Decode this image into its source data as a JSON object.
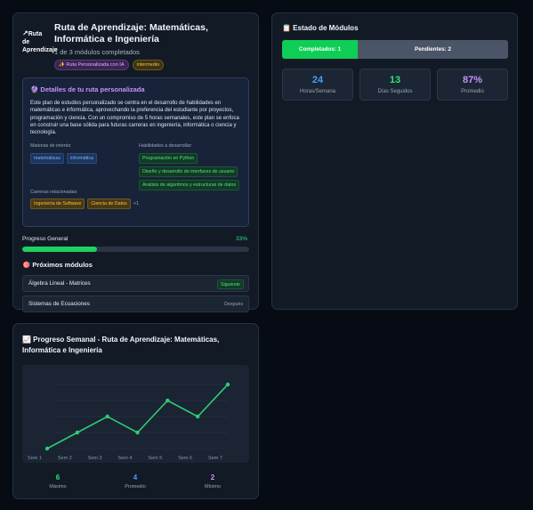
{
  "route": {
    "logo_alt": "Ruta de Aprendizaje",
    "logo_icon": "logo-icon",
    "title": "Ruta de Aprendizaje: Matemáticas, Informática e Ingeniería",
    "subtitle": "1 de 3 módulos completados",
    "tag_ai": "✨ Ruta Personalizada con IA",
    "tag_level": "intermedio",
    "details": {
      "title": "🔮 Detalles de tu ruta personalizada",
      "description": "Este plan de estudios personalizado se centra en el desarrollo de habilidades en matemáticas e informática, aprovechando la preferencia del estudiante por proyectos, programación y ciencia. Con un compromiso de 5 horas semanales, este plan se enfoca en construir una base sólida para futuras carreras en ingeniería, informática o ciencia y tecnología.",
      "interests_label": "Materias de interés:",
      "interests": [
        "matemáticas",
        "informática"
      ],
      "skills_label": "Habilidades a desarrollar:",
      "skills": [
        "Programación en Python",
        "Diseño y desarrollo de interfaces de usuario",
        "Análisis de algoritmos y estructuras de datos"
      ],
      "careers_label": "Carreras relacionadas:",
      "careers": [
        "Ingeniería de Software",
        "Ciencia de Datos"
      ],
      "careers_more": "+1"
    },
    "progress": {
      "label": "Progreso General",
      "percent_text": "33%",
      "fraction": 0.33
    },
    "next": {
      "title": "🎯 Próximos módulos",
      "items": [
        {
          "name": "Álgebra Lineal - Matrices",
          "status": "Siguiente"
        },
        {
          "name": "Sistemas de Ecuaciones",
          "status": "Después"
        }
      ]
    }
  },
  "status": {
    "title": "📋 Estado de Módulos",
    "completed_label": "Completados: 1",
    "pending_label": "Pendientes: 2",
    "stats": [
      {
        "value": "24",
        "label": "Horas/Semana",
        "color": "#4a9cff"
      },
      {
        "value": "13",
        "label": "Días Seguidos",
        "color": "#2ee37a"
      },
      {
        "value": "87%",
        "label": "Promedio",
        "color": "#c792ff"
      }
    ]
  },
  "weekly": {
    "title": "📈 Progreso Semanal - Ruta de Aprendizaje: Matemáticas, Informática e Ingeniería",
    "summary": [
      {
        "value": "6",
        "label": "Máximo",
        "color": "#2ee37a"
      },
      {
        "value": "4",
        "label": "Promedio",
        "color": "#4a9cff"
      },
      {
        "value": "2",
        "label": "Mínimo",
        "color": "#c792ff"
      }
    ]
  },
  "chart_data": {
    "type": "line",
    "title": "",
    "categories": [
      "Sem 1",
      "Sem 2",
      "Sem 3",
      "Sem 4",
      "Sem 5",
      "Sem 6",
      "Sem 7"
    ],
    "values": [
      2,
      3,
      4,
      3,
      5,
      4,
      6
    ],
    "ylim": [
      2,
      6
    ],
    "grid": true,
    "line_color": "#2ecc71"
  }
}
